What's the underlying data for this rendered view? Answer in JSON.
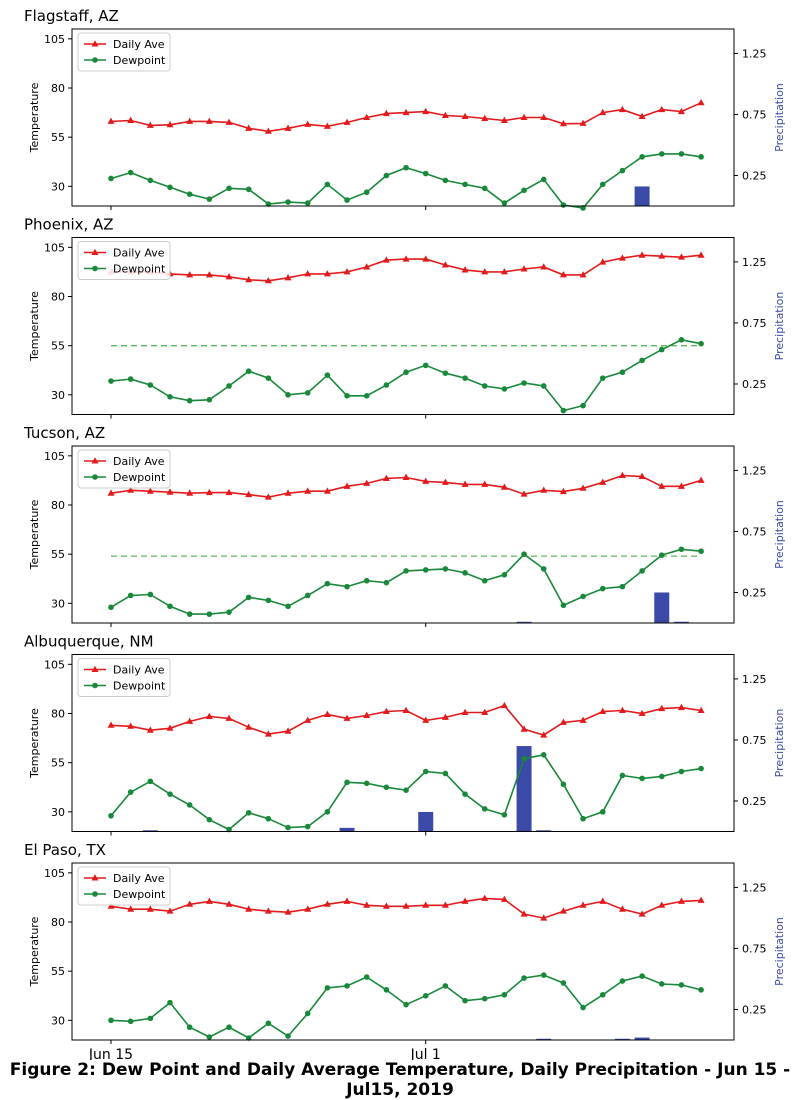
{
  "caption": "Figure 2: Dew Point and Daily Average Temperature, Daily Precipitation - Jun 15 - Jul15, 2019",
  "colors": {
    "daily_ave": "#e31a1c",
    "dewpoint": "#18883a",
    "precip": "#3a4aa6",
    "reference_line": "#5cb85c"
  },
  "chart_data": [
    {
      "type": "line",
      "title": "Flagstaff, AZ",
      "ylabel": "Temperature",
      "y2label": "Precipitation",
      "ylim": [
        20,
        110
      ],
      "y2lim": [
        0,
        1.45
      ],
      "yticks": [
        30,
        55,
        80,
        105
      ],
      "y2ticks": [
        0.25,
        0.75,
        1.25
      ],
      "xticks": [
        {
          "day": 0,
          "label": "Jun 15"
        },
        {
          "day": 16,
          "label": "Jul 1"
        }
      ],
      "grid": false,
      "legend": "top-left",
      "series": [
        {
          "name": "Daily Ave",
          "marker": "triangle",
          "axis": "left",
          "values": [
            63,
            63.5,
            61,
            61.3,
            63,
            63,
            62.5,
            59.5,
            58,
            59.5,
            61.5,
            60.5,
            62.5,
            65,
            67,
            67.5,
            68,
            66,
            65.5,
            64.5,
            63.5,
            65,
            65,
            61.8,
            62,
            67.5,
            69,
            65.5,
            69,
            68,
            72.5
          ]
        },
        {
          "name": "Dewpoint",
          "marker": "circle",
          "axis": "left",
          "values": [
            34,
            37,
            33,
            29.5,
            26,
            23.5,
            29,
            28.5,
            21,
            22,
            21.5,
            31,
            23,
            27,
            35.5,
            39.5,
            36.5,
            33,
            31,
            29,
            21.5,
            28,
            33.5,
            20.5,
            19,
            31,
            38,
            45,
            46.5,
            46.5,
            45
          ]
        },
        {
          "name": "Precipitation",
          "type": "bar",
          "axis": "right",
          "values": [
            0,
            0,
            0,
            0,
            0,
            0,
            0,
            0,
            0,
            0,
            0,
            0,
            0,
            0,
            0,
            0,
            0,
            0,
            0,
            0,
            0,
            0,
            0,
            0,
            0,
            0,
            0,
            0.16,
            0,
            0,
            0
          ]
        }
      ]
    },
    {
      "type": "line",
      "title": "Phoenix, AZ",
      "ylabel": "Temperature",
      "y2label": "Precipitation",
      "ylim": [
        20,
        110
      ],
      "y2lim": [
        0,
        1.45
      ],
      "yticks": [
        30,
        55,
        80,
        105
      ],
      "y2ticks": [
        0.25,
        0.75,
        1.25
      ],
      "xticks": [
        {
          "day": 0,
          "label": "Jun 15"
        },
        {
          "day": 16,
          "label": "Jul 1"
        }
      ],
      "grid": false,
      "legend": "top-left",
      "reference_line": 55,
      "series": [
        {
          "name": "Daily Ave",
          "marker": "triangle",
          "axis": "left",
          "values": [
            92.5,
            92.5,
            92.5,
            91.5,
            91,
            91,
            90,
            88.5,
            88,
            89.5,
            91.5,
            91.5,
            92.5,
            95,
            98.5,
            99,
            99,
            96,
            93.5,
            92.5,
            92.5,
            94,
            95,
            91,
            91,
            97.5,
            99.5,
            101,
            100.5,
            100,
            101
          ]
        },
        {
          "name": "Dewpoint",
          "marker": "circle",
          "axis": "left",
          "values": [
            37,
            38,
            35,
            29,
            27,
            27.5,
            34.5,
            42,
            38.5,
            30,
            31,
            40,
            29.5,
            29.5,
            35,
            41.5,
            45,
            41,
            38.5,
            34.5,
            33,
            36,
            34.5,
            22,
            24.5,
            38.5,
            41.5,
            47.5,
            53,
            58,
            56
          ]
        },
        {
          "name": "Precipitation",
          "type": "bar",
          "axis": "right",
          "values": [
            0,
            0,
            0,
            0,
            0,
            0,
            0,
            0,
            0,
            0,
            0,
            0,
            0,
            0,
            0,
            0,
            0,
            0,
            0,
            0,
            0,
            0,
            0,
            0,
            0,
            0,
            0,
            0,
            0,
            0,
            0
          ]
        }
      ]
    },
    {
      "type": "line",
      "title": "Tucson, AZ",
      "ylabel": "Temperature",
      "y2label": "Precipitation",
      "ylim": [
        20,
        110
      ],
      "y2lim": [
        0,
        1.45
      ],
      "yticks": [
        30,
        55,
        80,
        105
      ],
      "y2ticks": [
        0.25,
        0.75,
        1.25
      ],
      "xticks": [
        {
          "day": 0,
          "label": "Jun 15"
        },
        {
          "day": 16,
          "label": "Jul 1"
        }
      ],
      "grid": false,
      "legend": "top-left",
      "reference_line": 54,
      "series": [
        {
          "name": "Daily Ave",
          "marker": "triangle",
          "axis": "left",
          "values": [
            86,
            87.5,
            87,
            86.5,
            86,
            86.3,
            86.3,
            85.3,
            84,
            86,
            87,
            87,
            89.5,
            91,
            93.5,
            94,
            92,
            91.5,
            90.5,
            90.5,
            89,
            85.5,
            87.5,
            86.8,
            88.5,
            91.5,
            95,
            94.5,
            89.5,
            89.5,
            92.5
          ]
        },
        {
          "name": "Dewpoint",
          "marker": "circle",
          "axis": "left",
          "values": [
            28,
            34,
            34.5,
            28.5,
            24.5,
            24.5,
            25.5,
            33,
            31.5,
            28.5,
            34,
            40,
            38.5,
            41.5,
            40.5,
            46.5,
            47,
            47.5,
            45.5,
            41.5,
            44.5,
            55,
            47.5,
            29,
            33.5,
            37.5,
            38.5,
            46.5,
            54.5,
            57.5,
            56.5
          ]
        },
        {
          "name": "Precipitation",
          "type": "bar",
          "axis": "right",
          "values": [
            0,
            0,
            0,
            0,
            0,
            0,
            0,
            0,
            0,
            0,
            0,
            0,
            0,
            0,
            0,
            0,
            0,
            0,
            0,
            0,
            0,
            0.01,
            0,
            0,
            0,
            0,
            0,
            0,
            0.25,
            0.01,
            0
          ]
        }
      ]
    },
    {
      "type": "line",
      "title": "Albuquerque, NM",
      "ylabel": "Temperature",
      "y2label": "Precipitation",
      "ylim": [
        20,
        110
      ],
      "y2lim": [
        0,
        1.45
      ],
      "yticks": [
        30,
        55,
        80,
        105
      ],
      "y2ticks": [
        0.25,
        0.75,
        1.25
      ],
      "xticks": [
        {
          "day": 0,
          "label": "Jun 15"
        },
        {
          "day": 16,
          "label": "Jul 1"
        }
      ],
      "grid": false,
      "legend": "top-left",
      "series": [
        {
          "name": "Daily Ave",
          "marker": "triangle",
          "axis": "left",
          "values": [
            74,
            73.5,
            71.5,
            72.5,
            76,
            78.5,
            77.5,
            73,
            69.5,
            71,
            76.5,
            79.5,
            77.5,
            79,
            81,
            81.5,
            76.5,
            78,
            80.5,
            80.5,
            84,
            72,
            69,
            75.5,
            76.5,
            81,
            81.5,
            80,
            82.5,
            83,
            81.5
          ]
        },
        {
          "name": "Dewpoint",
          "marker": "circle",
          "axis": "left",
          "values": [
            28,
            40,
            45.5,
            39,
            33.5,
            26,
            21,
            29.5,
            26.5,
            22,
            22.5,
            30,
            45,
            44.5,
            42.5,
            41,
            50.5,
            49.5,
            39,
            31.5,
            28.5,
            57,
            59,
            44,
            26.5,
            30,
            48.5,
            47,
            48,
            50.5,
            52
          ]
        },
        {
          "name": "Precipitation",
          "type": "bar",
          "axis": "right",
          "values": [
            0,
            0,
            0.01,
            0,
            0,
            0,
            0,
            0,
            0,
            0,
            0,
            0,
            0.03,
            0,
            0,
            0,
            0.16,
            0,
            0,
            0,
            0,
            0.7,
            0.01,
            0,
            0,
            0,
            0,
            0,
            0,
            0,
            0
          ]
        }
      ]
    },
    {
      "type": "line",
      "title": "El Paso, TX",
      "ylabel": "Temperature",
      "y2label": "Precipitation",
      "ylim": [
        20,
        110
      ],
      "y2lim": [
        0,
        1.45
      ],
      "yticks": [
        30,
        55,
        80,
        105
      ],
      "y2ticks": [
        0.25,
        0.75,
        1.25
      ],
      "xticks": [
        {
          "day": 0,
          "label": "Jun 15"
        },
        {
          "day": 16,
          "label": "Jul 1"
        }
      ],
      "grid": false,
      "legend": "top-left",
      "series": [
        {
          "name": "Daily Ave",
          "marker": "triangle",
          "axis": "left",
          "values": [
            88,
            86.5,
            86.5,
            85.5,
            89,
            90.5,
            89,
            86.5,
            85.5,
            85,
            86.5,
            89,
            90.5,
            88.5,
            88,
            88,
            88.5,
            88.5,
            90.5,
            92,
            91.5,
            84,
            82,
            85.5,
            88.5,
            90.5,
            86.5,
            84,
            88.5,
            90.5,
            91
          ]
        },
        {
          "name": "Dewpoint",
          "marker": "circle",
          "axis": "left",
          "values": [
            30,
            29.5,
            31,
            39,
            26.5,
            21.5,
            26.5,
            21,
            28.5,
            22,
            33.5,
            46.5,
            47.5,
            52,
            45.5,
            38,
            42.5,
            47.5,
            40,
            41,
            43,
            51.5,
            53,
            49,
            36.5,
            43,
            50,
            52.5,
            48.5,
            48,
            45.5
          ]
        },
        {
          "name": "Precipitation",
          "type": "bar",
          "axis": "right",
          "values": [
            0,
            0,
            0,
            0,
            0,
            0,
            0,
            0,
            0,
            0,
            0,
            0,
            0,
            0,
            0,
            0,
            0,
            0,
            0,
            0,
            0,
            0,
            0.01,
            0,
            0,
            0,
            0.01,
            0.02,
            0,
            0,
            0
          ]
        }
      ]
    }
  ]
}
